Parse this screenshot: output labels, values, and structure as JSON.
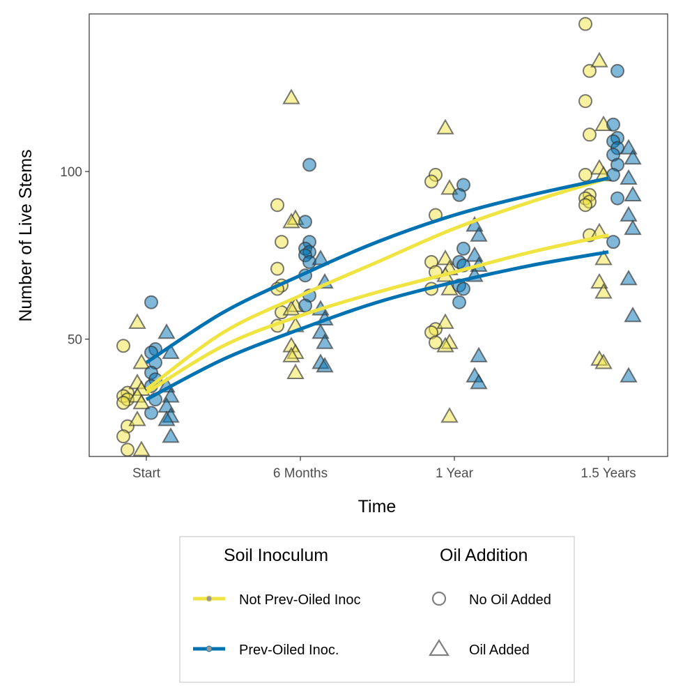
{
  "chart_data": {
    "type": "scatter",
    "xlabel": "Time",
    "ylabel": "Number of Live Stems",
    "categories": [
      "Start",
      "6 Months",
      "1 Year",
      "1.5 Years"
    ],
    "ylim": [
      15,
      147
    ],
    "yticks": [
      50,
      100
    ],
    "grid": false,
    "legend_placement": "bottom",
    "colors": {
      "not_prev_oiled": "#F0E442",
      "prev_oiled": "#0072B2"
    },
    "legend": {
      "inoculum_title": "Soil Inoculum",
      "inoculum_items": [
        {
          "label": "Not Prev-Oiled Inoc",
          "color": "#F0E442"
        },
        {
          "label": "Prev-Oiled Inoc.",
          "color": "#0072B2"
        }
      ],
      "oil_title": "Oil Addition",
      "oil_items": [
        {
          "label": "No Oil Added",
          "shape": "circle"
        },
        {
          "label": "Oil Added",
          "shape": "triangle"
        }
      ]
    },
    "series": [
      {
        "inoculum": "Not Prev-Oiled Inoc",
        "oil": "No Oil Added",
        "color": "#F0E442",
        "shape": "circle",
        "points": [
          [
            0,
            48
          ],
          [
            0,
            34
          ],
          [
            0,
            33
          ],
          [
            0,
            32
          ],
          [
            0,
            31
          ],
          [
            0,
            24
          ],
          [
            0,
            21
          ],
          [
            0,
            17
          ],
          [
            1,
            90
          ],
          [
            1,
            79
          ],
          [
            1,
            71
          ],
          [
            1,
            66
          ],
          [
            1,
            65
          ],
          [
            1,
            58
          ],
          [
            1,
            54
          ],
          [
            2,
            99
          ],
          [
            2,
            97
          ],
          [
            2,
            87
          ],
          [
            2,
            73
          ],
          [
            2,
            70
          ],
          [
            2,
            65
          ],
          [
            2,
            53
          ],
          [
            2,
            52
          ],
          [
            2,
            49
          ],
          [
            3,
            144
          ],
          [
            3,
            130
          ],
          [
            3,
            121
          ],
          [
            3,
            111
          ],
          [
            3,
            99
          ],
          [
            3,
            93
          ],
          [
            3,
            92
          ],
          [
            3,
            91
          ],
          [
            3,
            90
          ],
          [
            3,
            81
          ]
        ]
      },
      {
        "inoculum": "Not Prev-Oiled Inoc",
        "oil": "Oil Added",
        "color": "#F0E442",
        "shape": "triangle",
        "points": [
          [
            0,
            55
          ],
          [
            0,
            43
          ],
          [
            0,
            37
          ],
          [
            0,
            35
          ],
          [
            0,
            33
          ],
          [
            0,
            31
          ],
          [
            0,
            26
          ],
          [
            0,
            17
          ],
          [
            1,
            122
          ],
          [
            1,
            86
          ],
          [
            1,
            85
          ],
          [
            1,
            60
          ],
          [
            1,
            59
          ],
          [
            1,
            54
          ],
          [
            1,
            48
          ],
          [
            1,
            46
          ],
          [
            1,
            45
          ],
          [
            1,
            40
          ],
          [
            2,
            113
          ],
          [
            2,
            95
          ],
          [
            2,
            74
          ],
          [
            2,
            71
          ],
          [
            2,
            69
          ],
          [
            2,
            65
          ],
          [
            2,
            55
          ],
          [
            2,
            49
          ],
          [
            2,
            48
          ],
          [
            2,
            27
          ],
          [
            3,
            133
          ],
          [
            3,
            114
          ],
          [
            3,
            101
          ],
          [
            3,
            99
          ],
          [
            3,
            82
          ],
          [
            3,
            74
          ],
          [
            3,
            67
          ],
          [
            3,
            64
          ],
          [
            3,
            44
          ],
          [
            3,
            43
          ]
        ]
      },
      {
        "inoculum": "Prev-Oiled Inoc.",
        "oil": "No Oil Added",
        "color": "#0072B2",
        "shape": "circle",
        "points": [
          [
            0,
            61
          ],
          [
            0,
            47
          ],
          [
            0,
            46
          ],
          [
            0,
            43
          ],
          [
            0,
            40
          ],
          [
            0,
            38
          ],
          [
            0,
            36
          ],
          [
            0,
            32
          ],
          [
            0,
            28
          ],
          [
            1,
            102
          ],
          [
            1,
            85
          ],
          [
            1,
            79
          ],
          [
            1,
            77
          ],
          [
            1,
            76
          ],
          [
            1,
            75
          ],
          [
            1,
            73
          ],
          [
            1,
            69
          ],
          [
            1,
            63
          ],
          [
            1,
            60
          ],
          [
            2,
            96
          ],
          [
            2,
            93
          ],
          [
            2,
            77
          ],
          [
            2,
            73
          ],
          [
            2,
            72
          ],
          [
            2,
            66
          ],
          [
            2,
            65
          ],
          [
            2,
            61
          ],
          [
            3,
            130
          ],
          [
            3,
            114
          ],
          [
            3,
            110
          ],
          [
            3,
            109
          ],
          [
            3,
            107
          ],
          [
            3,
            105
          ],
          [
            3,
            102
          ],
          [
            3,
            99
          ],
          [
            3,
            92
          ],
          [
            3,
            79
          ]
        ]
      },
      {
        "inoculum": "Prev-Oiled Inoc.",
        "oil": "Oil Added",
        "color": "#0072B2",
        "shape": "triangle",
        "points": [
          [
            0,
            52
          ],
          [
            0,
            46
          ],
          [
            0,
            36
          ],
          [
            0,
            33
          ],
          [
            0,
            30
          ],
          [
            0,
            27
          ],
          [
            0,
            26
          ],
          [
            0,
            21
          ],
          [
            1,
            74
          ],
          [
            1,
            67
          ],
          [
            1,
            59
          ],
          [
            1,
            56
          ],
          [
            1,
            52
          ],
          [
            1,
            49
          ],
          [
            1,
            43
          ],
          [
            1,
            42
          ],
          [
            2,
            84
          ],
          [
            2,
            81
          ],
          [
            2,
            75
          ],
          [
            2,
            72
          ],
          [
            2,
            69
          ],
          [
            2,
            45
          ],
          [
            2,
            39
          ],
          [
            2,
            37
          ],
          [
            3,
            107
          ],
          [
            3,
            104
          ],
          [
            3,
            98
          ],
          [
            3,
            93
          ],
          [
            3,
            87
          ],
          [
            3,
            83
          ],
          [
            3,
            68
          ],
          [
            3,
            57
          ],
          [
            3,
            39
          ]
        ]
      }
    ],
    "fit_lines": [
      {
        "inoculum": "Not Prev-Oiled Inoc",
        "color": "#F0E442",
        "points": [
          [
            0,
            35
          ],
          [
            0.5,
            52
          ],
          [
            1,
            63
          ],
          [
            1.5,
            73
          ],
          [
            2,
            83
          ],
          [
            2.5,
            91
          ],
          [
            3,
            98
          ]
        ]
      },
      {
        "inoculum": "Not Prev-Oiled Inoc",
        "color": "#F0E442",
        "points": [
          [
            0,
            34
          ],
          [
            0.5,
            48
          ],
          [
            1,
            57
          ],
          [
            1.5,
            64
          ],
          [
            2,
            70
          ],
          [
            2.5,
            76
          ],
          [
            3,
            81
          ]
        ]
      },
      {
        "inoculum": "Prev-Oiled Inoc.",
        "color": "#0072B2",
        "points": [
          [
            0,
            43
          ],
          [
            0.5,
            58
          ],
          [
            1,
            69
          ],
          [
            1.5,
            79
          ],
          [
            2,
            87
          ],
          [
            2.5,
            93
          ],
          [
            3,
            98
          ]
        ]
      },
      {
        "inoculum": "Prev-Oiled Inoc.",
        "color": "#0072B2",
        "points": [
          [
            0,
            32
          ],
          [
            0.5,
            44
          ],
          [
            1,
            53
          ],
          [
            1.5,
            61
          ],
          [
            2,
            67
          ],
          [
            2.5,
            72
          ],
          [
            3,
            76
          ]
        ]
      }
    ]
  }
}
